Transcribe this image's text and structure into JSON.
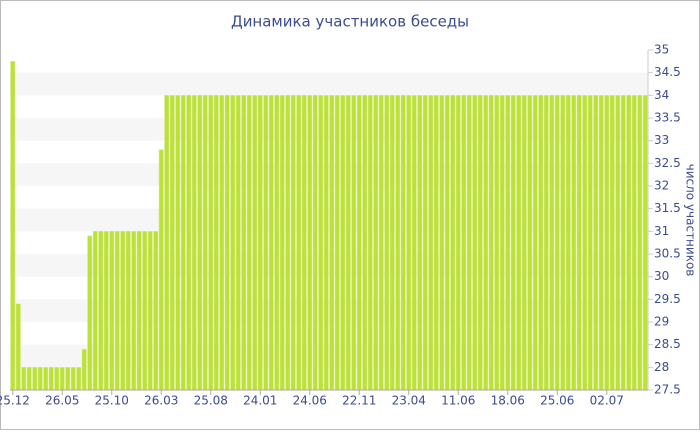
{
  "chart_data": {
    "type": "bar",
    "title": "Динамика участников беседы",
    "y_axis_label": "число участников",
    "color": "#bde03a",
    "grid": true,
    "ylim": [
      27.5,
      35
    ],
    "yticks": [
      27.5,
      28,
      28.5,
      29,
      29.5,
      30,
      30.5,
      31,
      31.5,
      32,
      32.5,
      33,
      33.5,
      34,
      34.5,
      35
    ],
    "categories": [
      "25.12",
      null,
      null,
      null,
      null,
      null,
      null,
      null,
      null,
      "26.05",
      null,
      null,
      null,
      null,
      null,
      null,
      null,
      null,
      "25.10",
      null,
      null,
      null,
      null,
      null,
      null,
      null,
      null,
      "26.03",
      null,
      null,
      null,
      null,
      null,
      null,
      null,
      null,
      "25.08",
      null,
      null,
      null,
      null,
      null,
      null,
      null,
      null,
      "24.01",
      null,
      null,
      null,
      null,
      null,
      null,
      null,
      null,
      "24.06",
      null,
      null,
      null,
      null,
      null,
      null,
      null,
      null,
      "22.11",
      null,
      null,
      null,
      null,
      null,
      null,
      null,
      null,
      "23.04",
      null,
      null,
      null,
      null,
      null,
      null,
      null,
      null,
      "11.06",
      null,
      null,
      null,
      null,
      null,
      null,
      null,
      null,
      "18.06",
      null,
      null,
      null,
      null,
      null,
      null,
      null,
      null,
      "25.06",
      null,
      null,
      null,
      null,
      null,
      null,
      null,
      null,
      "02.07",
      null,
      null,
      null,
      null,
      null,
      null,
      null
    ],
    "values": [
      34.75,
      29.4,
      28,
      28,
      28,
      28,
      28,
      28,
      28,
      28,
      28,
      28,
      28,
      28.4,
      30.9,
      31,
      31,
      31,
      31,
      31,
      31,
      31,
      31,
      31,
      31,
      31,
      31,
      32.8,
      34,
      34,
      34,
      34,
      34,
      34,
      34,
      34,
      34,
      34,
      34,
      34,
      34,
      34,
      34,
      34,
      34,
      34,
      34,
      34,
      34,
      34,
      34,
      34,
      34,
      34,
      34,
      34,
      34,
      34,
      34,
      34,
      34,
      34,
      34,
      34,
      34,
      34,
      34,
      34,
      34,
      34,
      34,
      34,
      34,
      34,
      34,
      34,
      34,
      34,
      34,
      34,
      34,
      34,
      34,
      34,
      34,
      34,
      34,
      34,
      34,
      34,
      34,
      34,
      34,
      34,
      34,
      34,
      34,
      34,
      34,
      34,
      34,
      34,
      34,
      34,
      34,
      34,
      34,
      34,
      34,
      34,
      34,
      34,
      34,
      34,
      34,
      34
    ]
  }
}
